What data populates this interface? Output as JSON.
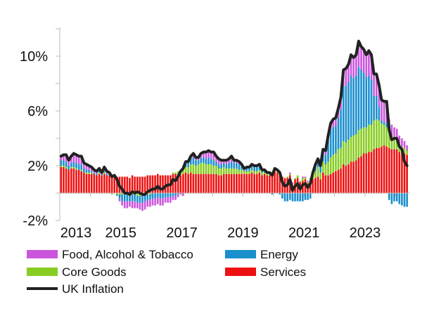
{
  "chart_data": {
    "type": "bar",
    "subtype": "stacked bar with line overlay",
    "title": "",
    "xlabel": "",
    "ylabel": "",
    "start_month": "2013-01",
    "end_month": "2024-05",
    "frequency": "monthly",
    "ylim": [
      -2,
      12
    ],
    "y_ticks": [
      10,
      6,
      2,
      -2
    ],
    "y_tick_labels": [
      "10%",
      "6%",
      "2%",
      "-2%"
    ],
    "x_ticks": [
      "2013",
      "2015",
      "2017",
      "2019",
      "2021",
      "2023"
    ],
    "grid": false,
    "legend_position": "bottom",
    "series": [
      {
        "name": "Services",
        "kind": "bar",
        "color": "#ee1111",
        "values": [
          1.9,
          1.9,
          1.8,
          1.7,
          1.8,
          1.8,
          1.7,
          1.7,
          1.6,
          1.5,
          1.4,
          1.4,
          1.4,
          1.4,
          1.3,
          1.4,
          1.3,
          1.4,
          1.3,
          1.3,
          1.2,
          1.2,
          1.2,
          1.2,
          1.2,
          1.2,
          1.2,
          1.1,
          1.3,
          1.2,
          1.2,
          1.2,
          1.2,
          1.2,
          1.3,
          1.3,
          1.3,
          1.3,
          1.4,
          1.3,
          1.3,
          1.3,
          1.3,
          1.3,
          1.4,
          1.4,
          1.4,
          1.3,
          1.4,
          1.5,
          1.4,
          1.5,
          1.4,
          1.4,
          1.4,
          1.4,
          1.4,
          1.4,
          1.4,
          1.4,
          1.4,
          1.4,
          1.3,
          1.3,
          1.4,
          1.4,
          1.4,
          1.4,
          1.4,
          1.4,
          1.4,
          1.4,
          1.4,
          1.4,
          1.4,
          1.5,
          1.4,
          1.4,
          1.5,
          1.3,
          1.4,
          1.3,
          1.3,
          1.3,
          1.6,
          1.5,
          1.4,
          1.2,
          1.1,
          1.1,
          1.3,
          0.6,
          1.0,
          1.1,
          0.8,
          0.9,
          1.0,
          0.7,
          0.9,
          1.0,
          1.1,
          1.2,
          1.0,
          1.5,
          1.3,
          1.3,
          1.4,
          1.5,
          1.6,
          1.7,
          1.8,
          2.1,
          2.0,
          2.1,
          2.3,
          2.3,
          2.4,
          2.6,
          2.7,
          2.9,
          2.9,
          3.0,
          3.0,
          3.2,
          3.3,
          3.3,
          3.4,
          3.5,
          3.4,
          3.3,
          3.2,
          3.2,
          3.2,
          3.0,
          2.9,
          2.9,
          2.8
        ]
      },
      {
        "name": "Core Goods",
        "kind": "bar",
        "color": "#88cc22",
        "values": [
          0.1,
          0.1,
          0.1,
          0.0,
          0.1,
          0.1,
          0.1,
          0.0,
          0.1,
          0.0,
          0.1,
          0.1,
          0.1,
          0.0,
          0.0,
          0.1,
          0.0,
          0.1,
          0.0,
          0.0,
          -0.1,
          0.0,
          -0.1,
          -0.1,
          -0.1,
          -0.1,
          -0.1,
          -0.1,
          -0.1,
          -0.1,
          -0.2,
          -0.2,
          -0.1,
          -0.1,
          -0.1,
          -0.1,
          0.0,
          0.0,
          0.0,
          0.0,
          0.0,
          0.0,
          0.0,
          0.0,
          0.1,
          0.1,
          0.2,
          0.3,
          0.3,
          0.4,
          0.5,
          0.6,
          0.7,
          0.6,
          0.7,
          0.8,
          0.8,
          0.7,
          0.7,
          0.7,
          0.6,
          0.6,
          0.5,
          0.5,
          0.5,
          0.4,
          0.4,
          0.4,
          0.4,
          0.4,
          0.3,
          0.3,
          0.2,
          0.2,
          0.2,
          0.2,
          0.2,
          0.2,
          0.2,
          0.2,
          0.1,
          0.1,
          0.1,
          0.1,
          0.1,
          0.1,
          0.1,
          0.0,
          0.0,
          0.1,
          0.1,
          0.1,
          0.1,
          0.2,
          0.1,
          0.2,
          0.1,
          0.1,
          0.2,
          0.3,
          0.5,
          0.7,
          0.5,
          0.8,
          0.8,
          1.0,
          1.2,
          1.3,
          1.3,
          1.5,
          1.5,
          1.7,
          1.7,
          1.8,
          1.8,
          1.9,
          1.9,
          2.0,
          2.0,
          1.9,
          1.9,
          2.0,
          2.0,
          2.1,
          2.1,
          2.0,
          1.7,
          1.5,
          1.4,
          1.2,
          1.0,
          0.9,
          0.8,
          0.6,
          0.5,
          0.4,
          0.3
        ]
      },
      {
        "name": "Energy",
        "kind": "bar",
        "color": "#1a8fcc",
        "values": [
          0.4,
          0.4,
          0.4,
          0.3,
          0.3,
          0.4,
          0.4,
          0.4,
          0.4,
          0.3,
          0.2,
          0.2,
          0.1,
          0.1,
          0.1,
          0.1,
          0.1,
          0.1,
          0.1,
          0.1,
          0.0,
          0.0,
          -0.1,
          -0.3,
          -0.5,
          -0.5,
          -0.5,
          -0.5,
          -0.5,
          -0.5,
          -0.5,
          -0.5,
          -0.6,
          -0.5,
          -0.4,
          -0.4,
          -0.4,
          -0.4,
          -0.3,
          -0.4,
          -0.4,
          -0.3,
          -0.3,
          -0.3,
          -0.2,
          -0.2,
          -0.1,
          0.1,
          0.3,
          0.4,
          0.4,
          0.5,
          0.5,
          0.4,
          0.3,
          0.4,
          0.4,
          0.4,
          0.5,
          0.4,
          0.4,
          0.3,
          0.3,
          0.3,
          0.3,
          0.3,
          0.4,
          0.5,
          0.4,
          0.4,
          0.4,
          0.3,
          0.1,
          0.2,
          0.2,
          0.3,
          0.3,
          0.3,
          0.3,
          0.1,
          0.1,
          0.0,
          0.0,
          -0.1,
          0.0,
          0.0,
          -0.1,
          -0.4,
          -0.6,
          -0.6,
          -0.5,
          -0.6,
          -0.6,
          -0.6,
          -0.6,
          -0.6,
          -0.5,
          -0.5,
          -0.4,
          0.2,
          0.4,
          0.5,
          0.4,
          0.6,
          0.7,
          1.5,
          2.0,
          2.0,
          2.0,
          2.3,
          2.8,
          4.1,
          4.1,
          4.2,
          4.5,
          4.2,
          4.3,
          4.6,
          4.3,
          4.0,
          3.7,
          3.6,
          3.3,
          1.8,
          1.7,
          1.0,
          0.2,
          0.2,
          0.3,
          -0.5,
          -0.8,
          -0.6,
          -0.6,
          -0.8,
          -0.9,
          -1.0,
          -1.0
        ]
      },
      {
        "name": "Food, Alcohol & Tobacco",
        "kind": "bar",
        "color": "#cc55dd",
        "values": [
          0.3,
          0.4,
          0.5,
          0.4,
          0.5,
          0.6,
          0.6,
          0.6,
          0.6,
          0.4,
          0.4,
          0.3,
          0.3,
          0.2,
          0.2,
          0.2,
          0.1,
          0.3,
          0.2,
          0.1,
          0.1,
          0.1,
          0.0,
          -0.2,
          -0.3,
          -0.5,
          -0.5,
          -0.4,
          -0.5,
          -0.5,
          -0.4,
          -0.5,
          -0.6,
          -0.6,
          -0.5,
          -0.5,
          -0.5,
          -0.5,
          -0.5,
          -0.5,
          -0.5,
          -0.4,
          -0.4,
          -0.4,
          -0.3,
          -0.3,
          -0.2,
          -0.1,
          -0.2,
          0.0,
          0.0,
          0.1,
          0.3,
          0.2,
          0.2,
          0.3,
          0.4,
          0.5,
          0.5,
          0.5,
          0.6,
          0.4,
          0.4,
          0.3,
          0.2,
          0.3,
          0.3,
          0.4,
          0.2,
          0.2,
          0.2,
          0.1,
          0.1,
          0.1,
          0.1,
          0.1,
          0.1,
          0.1,
          0.1,
          0.1,
          0.1,
          0.1,
          0.1,
          0.0,
          0.1,
          0.1,
          0.1,
          0.0,
          0.0,
          0.0,
          0.1,
          0.1,
          0.0,
          0.0,
          0.0,
          0.1,
          0.1,
          0.1,
          0.0,
          0.0,
          0.1,
          0.1,
          0.1,
          0.3,
          0.3,
          0.4,
          0.5,
          0.6,
          0.6,
          0.7,
          0.9,
          1.1,
          1.3,
          1.3,
          1.5,
          1.5,
          1.5,
          1.9,
          1.7,
          1.7,
          1.6,
          1.8,
          1.8,
          1.6,
          1.6,
          1.6,
          1.5,
          1.5,
          1.6,
          0.9,
          0.8,
          0.7,
          0.7,
          0.6,
          0.6,
          0.5,
          0.4
        ]
      },
      {
        "name": "UK Inflation",
        "kind": "line",
        "color": "#222222",
        "values": [
          2.7,
          2.8,
          2.8,
          2.4,
          2.7,
          2.9,
          2.8,
          2.7,
          2.7,
          2.2,
          2.1,
          2.0,
          1.9,
          1.7,
          1.6,
          1.8,
          1.5,
          1.9,
          1.6,
          1.5,
          1.2,
          1.3,
          1.0,
          0.5,
          0.3,
          0.0,
          0.0,
          -0.1,
          0.1,
          0.0,
          0.1,
          0.0,
          -0.1,
          -0.1,
          0.1,
          0.2,
          0.3,
          0.3,
          0.5,
          0.3,
          0.3,
          0.5,
          0.6,
          0.6,
          1.0,
          0.9,
          1.2,
          1.6,
          1.8,
          2.3,
          2.3,
          2.7,
          2.9,
          2.6,
          2.6,
          2.9,
          3.0,
          3.0,
          3.1,
          3.0,
          3.0,
          2.7,
          2.5,
          2.4,
          2.4,
          2.4,
          2.5,
          2.7,
          2.4,
          2.4,
          2.3,
          2.1,
          1.8,
          1.9,
          1.9,
          2.1,
          2.0,
          2.0,
          2.1,
          1.7,
          1.7,
          1.5,
          1.5,
          1.3,
          1.8,
          1.7,
          1.5,
          0.8,
          0.5,
          0.6,
          1.0,
          0.2,
          0.5,
          0.7,
          0.3,
          0.6,
          0.7,
          0.4,
          0.7,
          1.5,
          2.1,
          2.5,
          2.0,
          3.2,
          3.1,
          4.2,
          5.1,
          5.4,
          5.5,
          6.2,
          7.0,
          9.0,
          9.1,
          9.4,
          10.1,
          9.9,
          10.1,
          11.1,
          10.7,
          10.5,
          10.1,
          10.4,
          10.1,
          8.7,
          8.7,
          7.9,
          6.8,
          6.7,
          6.7,
          4.6,
          3.9,
          4.0,
          4.0,
          3.4,
          3.2,
          2.3,
          2.0
        ]
      }
    ],
    "legend": [
      {
        "label": "Food, Alcohol & Tobacco",
        "color": "#cc55dd",
        "kind": "bar"
      },
      {
        "label": "Energy",
        "color": "#1a8fcc",
        "kind": "bar"
      },
      {
        "label": "Core Goods",
        "color": "#88cc22",
        "kind": "bar"
      },
      {
        "label": "Services",
        "color": "#ee1111",
        "kind": "bar"
      },
      {
        "label": "UK Inflation",
        "color": "#222222",
        "kind": "line"
      }
    ]
  }
}
